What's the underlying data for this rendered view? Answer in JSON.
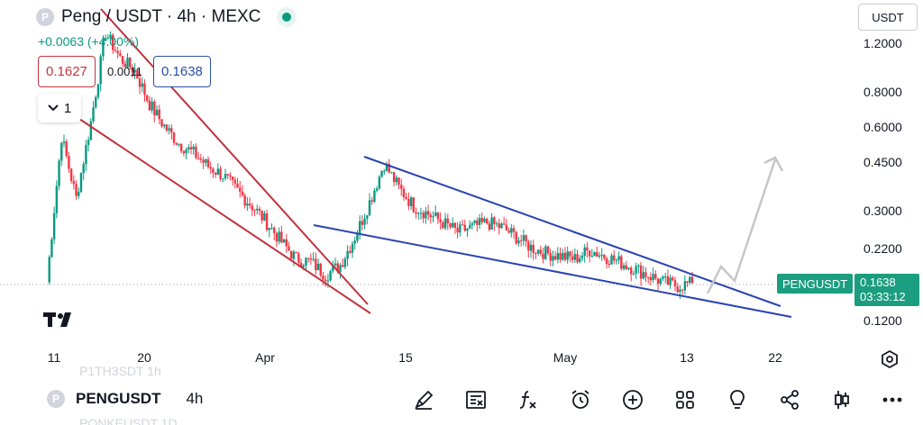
{
  "header": {
    "symbol_icon": "P",
    "title": "Peng / USDT · 4h · MEXC",
    "change": "+0.0063 (+4.00%)"
  },
  "quote": {
    "bid": "0.1627",
    "spread": "0.0011",
    "ask": "0.1638"
  },
  "interval_button": {
    "label": "1",
    "icon": "chevron-down-icon"
  },
  "currency_select": {
    "value": "USDT"
  },
  "price_axis": {
    "labels": [
      "1.2000",
      "0.8000",
      "0.6000",
      "0.4500",
      "0.3000",
      "0.2200",
      "0.1200"
    ]
  },
  "time_axis": {
    "labels": [
      "11",
      "20",
      "Apr",
      "15",
      "May",
      "13",
      "22"
    ]
  },
  "last_price": {
    "pair": "PENGUSDT",
    "price": "0.1638",
    "countdown": "03:33:12"
  },
  "ghost_rows": {
    "above": "P1TH3SDT 1h",
    "below": "PONKEUSDT 1D"
  },
  "toolbar": {
    "symbol_icon": "P",
    "symbol": "PENGUSDT",
    "interval": "4h",
    "icons": [
      "draw-icon",
      "close-position-icon",
      "indicator-fx-icon",
      "alert-icon",
      "add-icon",
      "layout-grid-icon",
      "idea-bulb-icon",
      "share-icon",
      "candles-icon",
      "more-icon"
    ]
  },
  "colors": {
    "up": "#089981",
    "down": "#f23645",
    "wedge1": "#c0323f",
    "wedge2": "#2a44b0",
    "projection": "#c6c6c6",
    "price_badge": "#1a9e7f"
  },
  "chart_data": {
    "type": "candlestick",
    "symbol": "Peng / USDT",
    "interval": "4h",
    "exchange": "MEXC",
    "y_scale": "log",
    "y_tick_labels": [
      1.2,
      0.8,
      0.6,
      0.45,
      0.3,
      0.22,
      0.12
    ],
    "x_tick_labels": [
      "11",
      "20",
      "Apr",
      "15",
      "May",
      "13",
      "22"
    ],
    "last_price": 0.1638,
    "close_series_approx": [
      0.165,
      0.55,
      0.33,
      0.62,
      1.3,
      1.05,
      0.95,
      0.72,
      0.6,
      0.52,
      0.48,
      0.43,
      0.4,
      0.35,
      0.31,
      0.27,
      0.23,
      0.2,
      0.195,
      0.175,
      0.19,
      0.24,
      0.32,
      0.44,
      0.36,
      0.31,
      0.29,
      0.27,
      0.25,
      0.26,
      0.27,
      0.26,
      0.24,
      0.22,
      0.21,
      0.205,
      0.2,
      0.215,
      0.205,
      0.195,
      0.185,
      0.175,
      0.165,
      0.16,
      0.1638
    ],
    "trend_lines": [
      "falling wedge (red)",
      "falling wedge (blue)",
      "projected breakout path (gray arrow)"
    ]
  }
}
